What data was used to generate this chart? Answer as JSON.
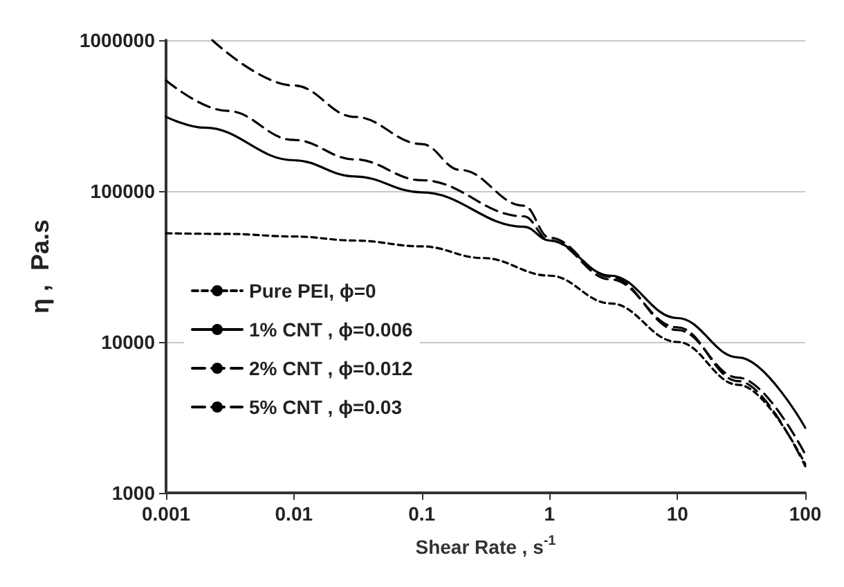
{
  "chart_data": {
    "type": "line",
    "xlabel": "Shear Rate , s$^{-1}$",
    "ylabel": "η ,  Pa.s",
    "log": "xy",
    "xlim": [
      0.001,
      100
    ],
    "xticks": [
      0.001,
      0.01,
      0.1,
      1,
      10,
      100
    ],
    "ylim": [
      1000,
      1000000
    ],
    "yticks": [
      1000,
      10000,
      100000,
      1000000
    ],
    "grid": "y",
    "legend": "bottom left",
    "marker": "none",
    "series": [
      {
        "name": "Pure PEI, ϕ=0",
        "color": "#000000",
        "line_style": "dotted",
        "x": [
          0.001,
          0.003,
          0.01,
          0.03,
          0.1,
          0.3,
          1,
          3,
          10,
          30,
          100
        ],
        "values": [
          52500,
          52000,
          50000,
          47000,
          43000,
          36000,
          27500,
          18000,
          10000,
          5200,
          1550
        ]
      },
      {
        "name": "1% CNT , ϕ=0.006",
        "color": "#000000",
        "line_style": "solid",
        "x": [
          0.001,
          0.002,
          0.01,
          0.03,
          0.1,
          0.63,
          1,
          3,
          10,
          30,
          100
        ],
        "values": [
          310000,
          263000,
          160000,
          125000,
          98000,
          58000,
          47000,
          27500,
          14400,
          7900,
          2700
        ]
      },
      {
        "name": "2% CNT , ϕ=0.012",
        "color": "#000000",
        "line_style": "dashed",
        "x": [
          0.001,
          0.003,
          0.01,
          0.03,
          0.1,
          0.63,
          1,
          3,
          10,
          30,
          100
        ],
        "values": [
          540000,
          340000,
          218000,
          162000,
          118000,
          68000,
          47000,
          26000,
          12500,
          5500,
          1500
        ]
      },
      {
        "name": "5% CNT , ϕ=0.03",
        "color": "#000000",
        "line_style": "dashed",
        "x": [
          0.0023,
          0.01,
          0.03,
          0.1,
          0.2,
          0.63,
          1,
          3,
          10,
          30,
          100
        ],
        "values": [
          1000000,
          500000,
          310000,
          205000,
          138000,
          80000,
          49000,
          27000,
          12000,
          5800,
          1800
        ]
      }
    ]
  }
}
